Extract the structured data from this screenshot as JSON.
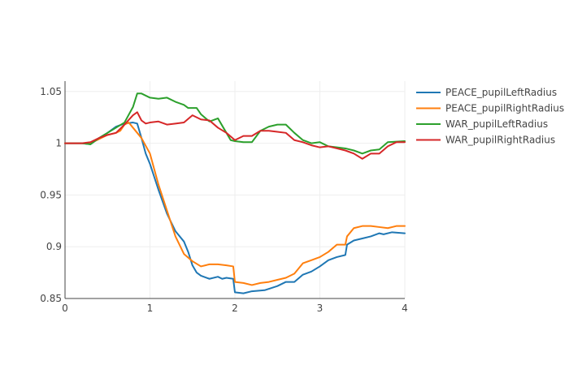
{
  "chart_data": {
    "type": "line",
    "title": "",
    "xlabel": "",
    "ylabel": "",
    "xlim": [
      0,
      4
    ],
    "ylim": [
      0.85,
      1.06
    ],
    "x_ticks": [
      0,
      1,
      2,
      3,
      4
    ],
    "x_tick_labels": [
      "0",
      "1",
      "2",
      "3",
      "4"
    ],
    "y_ticks": [
      0.85,
      0.9,
      0.95,
      1,
      1.05
    ],
    "y_tick_labels": [
      "0.85",
      "0.9",
      "0.95",
      "1",
      "1.05"
    ],
    "grid": true,
    "legend_position": "top-right",
    "series": [
      {
        "name": "PEACE_pupilLeftRadius",
        "color": "#1f77b4",
        "points": [
          [
            0,
            1.0
          ],
          [
            0.2,
            1.0
          ],
          [
            0.3,
            0.999
          ],
          [
            0.4,
            1.005
          ],
          [
            0.5,
            1.01
          ],
          [
            0.6,
            1.016
          ],
          [
            0.7,
            1.019
          ],
          [
            0.8,
            1.02
          ],
          [
            0.85,
            1.019
          ],
          [
            0.9,
            1.005
          ],
          [
            0.95,
            0.99
          ],
          [
            1.0,
            0.98
          ],
          [
            1.1,
            0.955
          ],
          [
            1.2,
            0.932
          ],
          [
            1.3,
            0.915
          ],
          [
            1.4,
            0.905
          ],
          [
            1.45,
            0.895
          ],
          [
            1.5,
            0.882
          ],
          [
            1.55,
            0.875
          ],
          [
            1.6,
            0.872
          ],
          [
            1.7,
            0.869
          ],
          [
            1.8,
            0.871
          ],
          [
            1.85,
            0.869
          ],
          [
            1.9,
            0.87
          ],
          [
            1.98,
            0.869
          ],
          [
            2.0,
            0.856
          ],
          [
            2.1,
            0.855
          ],
          [
            2.2,
            0.857
          ],
          [
            2.35,
            0.858
          ],
          [
            2.5,
            0.862
          ],
          [
            2.6,
            0.866
          ],
          [
            2.7,
            0.866
          ],
          [
            2.8,
            0.873
          ],
          [
            2.9,
            0.876
          ],
          [
            3.0,
            0.881
          ],
          [
            3.1,
            0.887
          ],
          [
            3.2,
            0.89
          ],
          [
            3.3,
            0.892
          ],
          [
            3.32,
            0.902
          ],
          [
            3.4,
            0.906
          ],
          [
            3.5,
            0.908
          ],
          [
            3.6,
            0.91
          ],
          [
            3.7,
            0.913
          ],
          [
            3.75,
            0.912
          ],
          [
            3.85,
            0.914
          ],
          [
            4.0,
            0.913
          ]
        ]
      },
      {
        "name": "PEACE_pupilRightRadius",
        "color": "#ff7f0e",
        "points": [
          [
            0,
            1.0
          ],
          [
            0.2,
            1.0
          ],
          [
            0.3,
            1.0
          ],
          [
            0.4,
            1.004
          ],
          [
            0.5,
            1.008
          ],
          [
            0.6,
            1.01
          ],
          [
            0.65,
            1.012
          ],
          [
            0.7,
            1.018
          ],
          [
            0.75,
            1.02
          ],
          [
            0.8,
            1.015
          ],
          [
            0.9,
            1.005
          ],
          [
            1.0,
            0.99
          ],
          [
            1.05,
            0.975
          ],
          [
            1.1,
            0.96
          ],
          [
            1.2,
            0.935
          ],
          [
            1.3,
            0.91
          ],
          [
            1.4,
            0.893
          ],
          [
            1.5,
            0.886
          ],
          [
            1.6,
            0.881
          ],
          [
            1.7,
            0.883
          ],
          [
            1.8,
            0.883
          ],
          [
            1.9,
            0.882
          ],
          [
            1.98,
            0.881
          ],
          [
            2.0,
            0.866
          ],
          [
            2.1,
            0.865
          ],
          [
            2.2,
            0.863
          ],
          [
            2.3,
            0.865
          ],
          [
            2.4,
            0.866
          ],
          [
            2.5,
            0.868
          ],
          [
            2.6,
            0.87
          ],
          [
            2.7,
            0.874
          ],
          [
            2.8,
            0.884
          ],
          [
            2.9,
            0.887
          ],
          [
            3.0,
            0.89
          ],
          [
            3.1,
            0.895
          ],
          [
            3.2,
            0.902
          ],
          [
            3.3,
            0.902
          ],
          [
            3.32,
            0.91
          ],
          [
            3.4,
            0.918
          ],
          [
            3.5,
            0.92
          ],
          [
            3.6,
            0.92
          ],
          [
            3.7,
            0.919
          ],
          [
            3.8,
            0.918
          ],
          [
            3.9,
            0.92
          ],
          [
            4.0,
            0.92
          ]
        ]
      },
      {
        "name": "WAR_pupilLeftRadius",
        "color": "#2ca02c",
        "points": [
          [
            0,
            1.0
          ],
          [
            0.2,
            1.0
          ],
          [
            0.3,
            0.999
          ],
          [
            0.4,
            1.005
          ],
          [
            0.5,
            1.01
          ],
          [
            0.6,
            1.015
          ],
          [
            0.7,
            1.02
          ],
          [
            0.8,
            1.035
          ],
          [
            0.85,
            1.048
          ],
          [
            0.9,
            1.048
          ],
          [
            1.0,
            1.044
          ],
          [
            1.1,
            1.043
          ],
          [
            1.2,
            1.044
          ],
          [
            1.3,
            1.04
          ],
          [
            1.4,
            1.037
          ],
          [
            1.45,
            1.034
          ],
          [
            1.55,
            1.034
          ],
          [
            1.6,
            1.028
          ],
          [
            1.7,
            1.021
          ],
          [
            1.8,
            1.024
          ],
          [
            1.9,
            1.01
          ],
          [
            1.95,
            1.003
          ],
          [
            2.0,
            1.002
          ],
          [
            2.1,
            1.001
          ],
          [
            2.2,
            1.001
          ],
          [
            2.3,
            1.012
          ],
          [
            2.4,
            1.016
          ],
          [
            2.5,
            1.018
          ],
          [
            2.6,
            1.018
          ],
          [
            2.7,
            1.01
          ],
          [
            2.8,
            1.003
          ],
          [
            2.9,
            1.0
          ],
          [
            3.0,
            1.001
          ],
          [
            3.1,
            0.997
          ],
          [
            3.2,
            0.996
          ],
          [
            3.3,
            0.995
          ],
          [
            3.4,
            0.993
          ],
          [
            3.5,
            0.99
          ],
          [
            3.6,
            0.993
          ],
          [
            3.7,
            0.994
          ],
          [
            3.8,
            1.001
          ],
          [
            4.0,
            1.002
          ]
        ]
      },
      {
        "name": "WAR_pupilRightRadius",
        "color": "#d62728",
        "points": [
          [
            0,
            1.0
          ],
          [
            0.2,
            1.0
          ],
          [
            0.3,
            1.001
          ],
          [
            0.4,
            1.005
          ],
          [
            0.5,
            1.008
          ],
          [
            0.6,
            1.01
          ],
          [
            0.7,
            1.018
          ],
          [
            0.8,
            1.027
          ],
          [
            0.85,
            1.03
          ],
          [
            0.9,
            1.022
          ],
          [
            0.95,
            1.019
          ],
          [
            1.0,
            1.02
          ],
          [
            1.1,
            1.021
          ],
          [
            1.2,
            1.018
          ],
          [
            1.3,
            1.019
          ],
          [
            1.4,
            1.02
          ],
          [
            1.5,
            1.027
          ],
          [
            1.6,
            1.023
          ],
          [
            1.7,
            1.022
          ],
          [
            1.8,
            1.015
          ],
          [
            1.9,
            1.01
          ],
          [
            2.0,
            1.003
          ],
          [
            2.1,
            1.007
          ],
          [
            2.2,
            1.007
          ],
          [
            2.3,
            1.012
          ],
          [
            2.4,
            1.012
          ],
          [
            2.5,
            1.011
          ],
          [
            2.6,
            1.01
          ],
          [
            2.7,
            1.003
          ],
          [
            2.8,
            1.001
          ],
          [
            2.9,
            0.998
          ],
          [
            3.0,
            0.996
          ],
          [
            3.1,
            0.997
          ],
          [
            3.2,
            0.995
          ],
          [
            3.3,
            0.993
          ],
          [
            3.4,
            0.99
          ],
          [
            3.5,
            0.985
          ],
          [
            3.6,
            0.99
          ],
          [
            3.7,
            0.99
          ],
          [
            3.8,
            0.997
          ],
          [
            3.9,
            1.001
          ],
          [
            4.0,
            1.001
          ]
        ]
      }
    ]
  }
}
